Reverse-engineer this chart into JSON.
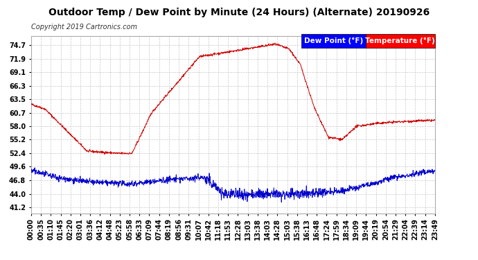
{
  "title": "Outdoor Temp / Dew Point by Minute (24 Hours) (Alternate) 20190926",
  "copyright": "Copyright 2019 Cartronics.com",
  "legend_labels": [
    "Dew Point (°F)",
    "Temperature (°F)"
  ],
  "bg_color": "#ffffff",
  "plot_bg_color": "#ffffff",
  "grid_color": "#c8c8c8",
  "yticks": [
    41.2,
    44.0,
    46.8,
    49.6,
    52.4,
    55.2,
    58.0,
    60.7,
    63.5,
    66.3,
    69.1,
    71.9,
    74.7
  ],
  "ylim": [
    40.0,
    76.5
  ],
  "temp_color": "#cc0000",
  "dew_color": "#0000cc",
  "title_fontsize": 10,
  "copyright_fontsize": 7,
  "tick_fontsize": 7,
  "legend_fontsize": 7.5,
  "xtick_labels": [
    "00:00",
    "00:35",
    "01:10",
    "01:45",
    "02:20",
    "03:01",
    "03:36",
    "04:12",
    "04:48",
    "05:23",
    "05:58",
    "06:33",
    "07:09",
    "07:44",
    "08:19",
    "08:56",
    "09:31",
    "10:07",
    "10:42",
    "11:18",
    "11:53",
    "12:28",
    "13:03",
    "13:38",
    "14:03",
    "14:28",
    "15:03",
    "15:38",
    "16:13",
    "16:48",
    "17:24",
    "17:59",
    "18:34",
    "19:09",
    "19:44",
    "20:19",
    "20:54",
    "21:29",
    "22:04",
    "22:39",
    "23:14",
    "23:49"
  ]
}
